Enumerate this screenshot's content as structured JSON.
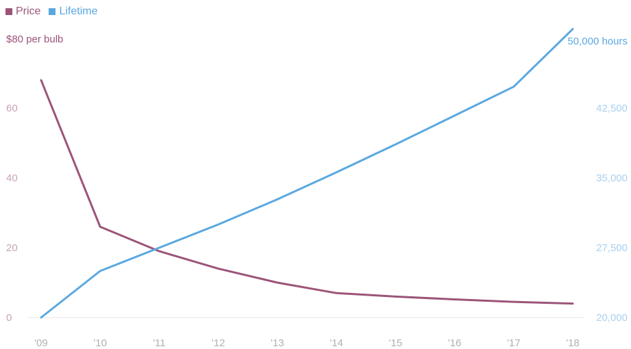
{
  "chart_data": {
    "type": "line",
    "x": [
      "'09",
      "'10",
      "'11",
      "'12",
      "'13",
      "'14",
      "'15",
      "'16",
      "'17",
      "'18"
    ],
    "left_axis": {
      "label": "$80 per bulb",
      "ticks": [
        "60",
        "40",
        "20",
        "0"
      ],
      "tick_values": [
        60,
        40,
        20,
        0
      ],
      "ylim": [
        0,
        80
      ]
    },
    "right_axis": {
      "label": "50,000 hours",
      "ticks": [
        "42,500",
        "35,000",
        "27,500",
        "20,000"
      ],
      "tick_values": [
        42500,
        35000,
        27500,
        20000
      ],
      "ylim": [
        20000,
        50000
      ]
    },
    "series": [
      {
        "name": "Price",
        "axis": "left",
        "color": "#9b5478",
        "values": [
          68,
          26,
          19,
          14,
          10,
          7,
          6,
          5.2,
          4.5,
          4
        ]
      },
      {
        "name": "Lifetime",
        "axis": "right",
        "color": "#5aa8e0",
        "values": [
          20000,
          25000,
          27500,
          30000,
          32700,
          35600,
          38600,
          41700,
          44800,
          51000
        ]
      }
    ],
    "grid": false,
    "legend": "top-left"
  }
}
